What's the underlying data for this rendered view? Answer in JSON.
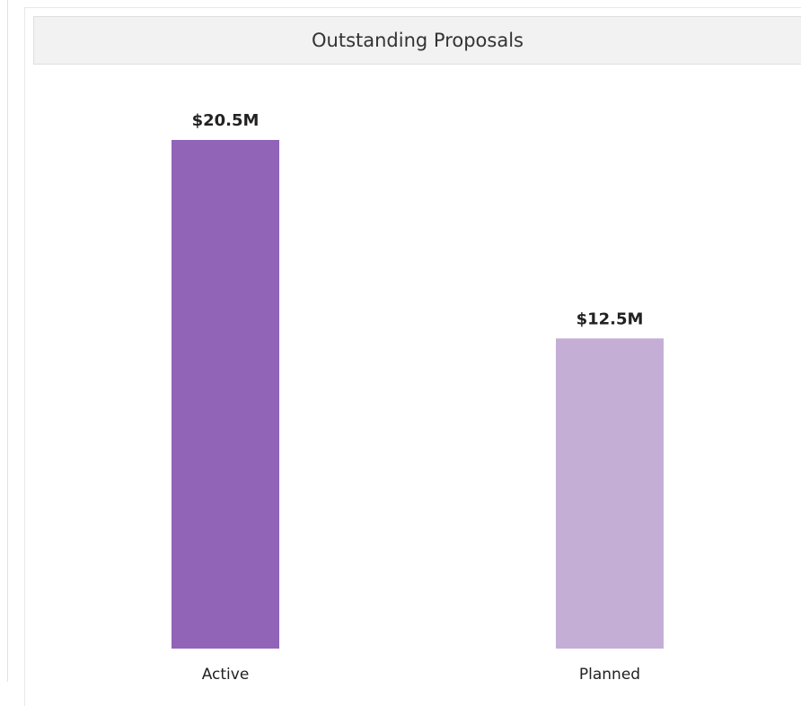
{
  "chart_data": {
    "type": "bar",
    "title": "Outstanding Proposals",
    "categories": [
      "Active",
      "Planned"
    ],
    "values": [
      20500000,
      12500000
    ],
    "value_labels": [
      "$20.5M",
      "$12.5M"
    ],
    "colors": [
      "#9164b8",
      "#c4aed6"
    ]
  }
}
